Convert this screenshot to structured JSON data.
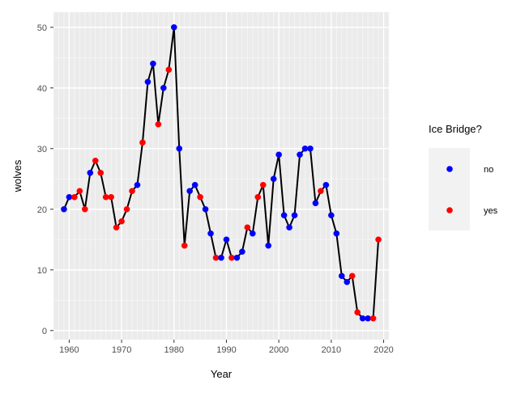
{
  "chart_data": {
    "type": "scatter",
    "xlabel": "Year",
    "ylabel": "wolves",
    "xlim": [
      1957.0,
      2021.0
    ],
    "ylim": [
      -1.5,
      52.5
    ],
    "x_ticks": [
      1960,
      1970,
      1980,
      1990,
      2000,
      2010,
      2020
    ],
    "y_ticks": [
      0,
      10,
      20,
      30,
      40,
      50
    ],
    "grid": true,
    "legend": {
      "title": "Ice Bridge?",
      "position": "right",
      "entries": [
        {
          "label": "no",
          "color": "#0000ff"
        },
        {
          "label": "yes",
          "color": "#ff0000"
        }
      ]
    },
    "line_color": "#000000",
    "panel_background": "#ebebeb",
    "points": [
      {
        "x": 1959,
        "y": 20,
        "ice_bridge": "no"
      },
      {
        "x": 1960,
        "y": 22,
        "ice_bridge": "no"
      },
      {
        "x": 1961,
        "y": 22,
        "ice_bridge": "yes"
      },
      {
        "x": 1962,
        "y": 23,
        "ice_bridge": "yes"
      },
      {
        "x": 1963,
        "y": 20,
        "ice_bridge": "yes"
      },
      {
        "x": 1964,
        "y": 26,
        "ice_bridge": "no"
      },
      {
        "x": 1965,
        "y": 28,
        "ice_bridge": "yes"
      },
      {
        "x": 1966,
        "y": 26,
        "ice_bridge": "yes"
      },
      {
        "x": 1967,
        "y": 22,
        "ice_bridge": "yes"
      },
      {
        "x": 1968,
        "y": 22,
        "ice_bridge": "yes"
      },
      {
        "x": 1969,
        "y": 17,
        "ice_bridge": "yes"
      },
      {
        "x": 1970,
        "y": 18,
        "ice_bridge": "yes"
      },
      {
        "x": 1971,
        "y": 20,
        "ice_bridge": "yes"
      },
      {
        "x": 1972,
        "y": 23,
        "ice_bridge": "yes"
      },
      {
        "x": 1973,
        "y": 24,
        "ice_bridge": "no"
      },
      {
        "x": 1974,
        "y": 31,
        "ice_bridge": "yes"
      },
      {
        "x": 1975,
        "y": 41,
        "ice_bridge": "no"
      },
      {
        "x": 1976,
        "y": 44,
        "ice_bridge": "no"
      },
      {
        "x": 1977,
        "y": 34,
        "ice_bridge": "yes"
      },
      {
        "x": 1978,
        "y": 40,
        "ice_bridge": "no"
      },
      {
        "x": 1979,
        "y": 43,
        "ice_bridge": "yes"
      },
      {
        "x": 1980,
        "y": 50,
        "ice_bridge": "no"
      },
      {
        "x": 1981,
        "y": 30,
        "ice_bridge": "no"
      },
      {
        "x": 1982,
        "y": 14,
        "ice_bridge": "yes"
      },
      {
        "x": 1983,
        "y": 23,
        "ice_bridge": "no"
      },
      {
        "x": 1984,
        "y": 24,
        "ice_bridge": "no"
      },
      {
        "x": 1985,
        "y": 22,
        "ice_bridge": "yes"
      },
      {
        "x": 1986,
        "y": 20,
        "ice_bridge": "no"
      },
      {
        "x": 1987,
        "y": 16,
        "ice_bridge": "no"
      },
      {
        "x": 1988,
        "y": 12,
        "ice_bridge": "yes"
      },
      {
        "x": 1989,
        "y": 12,
        "ice_bridge": "no"
      },
      {
        "x": 1990,
        "y": 15,
        "ice_bridge": "no"
      },
      {
        "x": 1991,
        "y": 12,
        "ice_bridge": "yes"
      },
      {
        "x": 1992,
        "y": 12,
        "ice_bridge": "no"
      },
      {
        "x": 1993,
        "y": 13,
        "ice_bridge": "no"
      },
      {
        "x": 1994,
        "y": 17,
        "ice_bridge": "yes"
      },
      {
        "x": 1995,
        "y": 16,
        "ice_bridge": "no"
      },
      {
        "x": 1996,
        "y": 22,
        "ice_bridge": "yes"
      },
      {
        "x": 1997,
        "y": 24,
        "ice_bridge": "yes"
      },
      {
        "x": 1998,
        "y": 14,
        "ice_bridge": "no"
      },
      {
        "x": 1999,
        "y": 25,
        "ice_bridge": "no"
      },
      {
        "x": 2000,
        "y": 29,
        "ice_bridge": "no"
      },
      {
        "x": 2001,
        "y": 19,
        "ice_bridge": "no"
      },
      {
        "x": 2002,
        "y": 17,
        "ice_bridge": "no"
      },
      {
        "x": 2003,
        "y": 19,
        "ice_bridge": "no"
      },
      {
        "x": 2004,
        "y": 29,
        "ice_bridge": "no"
      },
      {
        "x": 2005,
        "y": 30,
        "ice_bridge": "no"
      },
      {
        "x": 2006,
        "y": 30,
        "ice_bridge": "no"
      },
      {
        "x": 2007,
        "y": 21,
        "ice_bridge": "no"
      },
      {
        "x": 2008,
        "y": 23,
        "ice_bridge": "yes"
      },
      {
        "x": 2009,
        "y": 24,
        "ice_bridge": "no"
      },
      {
        "x": 2010,
        "y": 19,
        "ice_bridge": "no"
      },
      {
        "x": 2011,
        "y": 16,
        "ice_bridge": "no"
      },
      {
        "x": 2012,
        "y": 9,
        "ice_bridge": "no"
      },
      {
        "x": 2013,
        "y": 8,
        "ice_bridge": "no"
      },
      {
        "x": 2014,
        "y": 9,
        "ice_bridge": "yes"
      },
      {
        "x": 2015,
        "y": 3,
        "ice_bridge": "yes"
      },
      {
        "x": 2016,
        "y": 2,
        "ice_bridge": "no"
      },
      {
        "x": 2017,
        "y": 2,
        "ice_bridge": "no"
      },
      {
        "x": 2018,
        "y": 2,
        "ice_bridge": "yes"
      },
      {
        "x": 2019,
        "y": 15,
        "ice_bridge": "yes"
      }
    ]
  }
}
